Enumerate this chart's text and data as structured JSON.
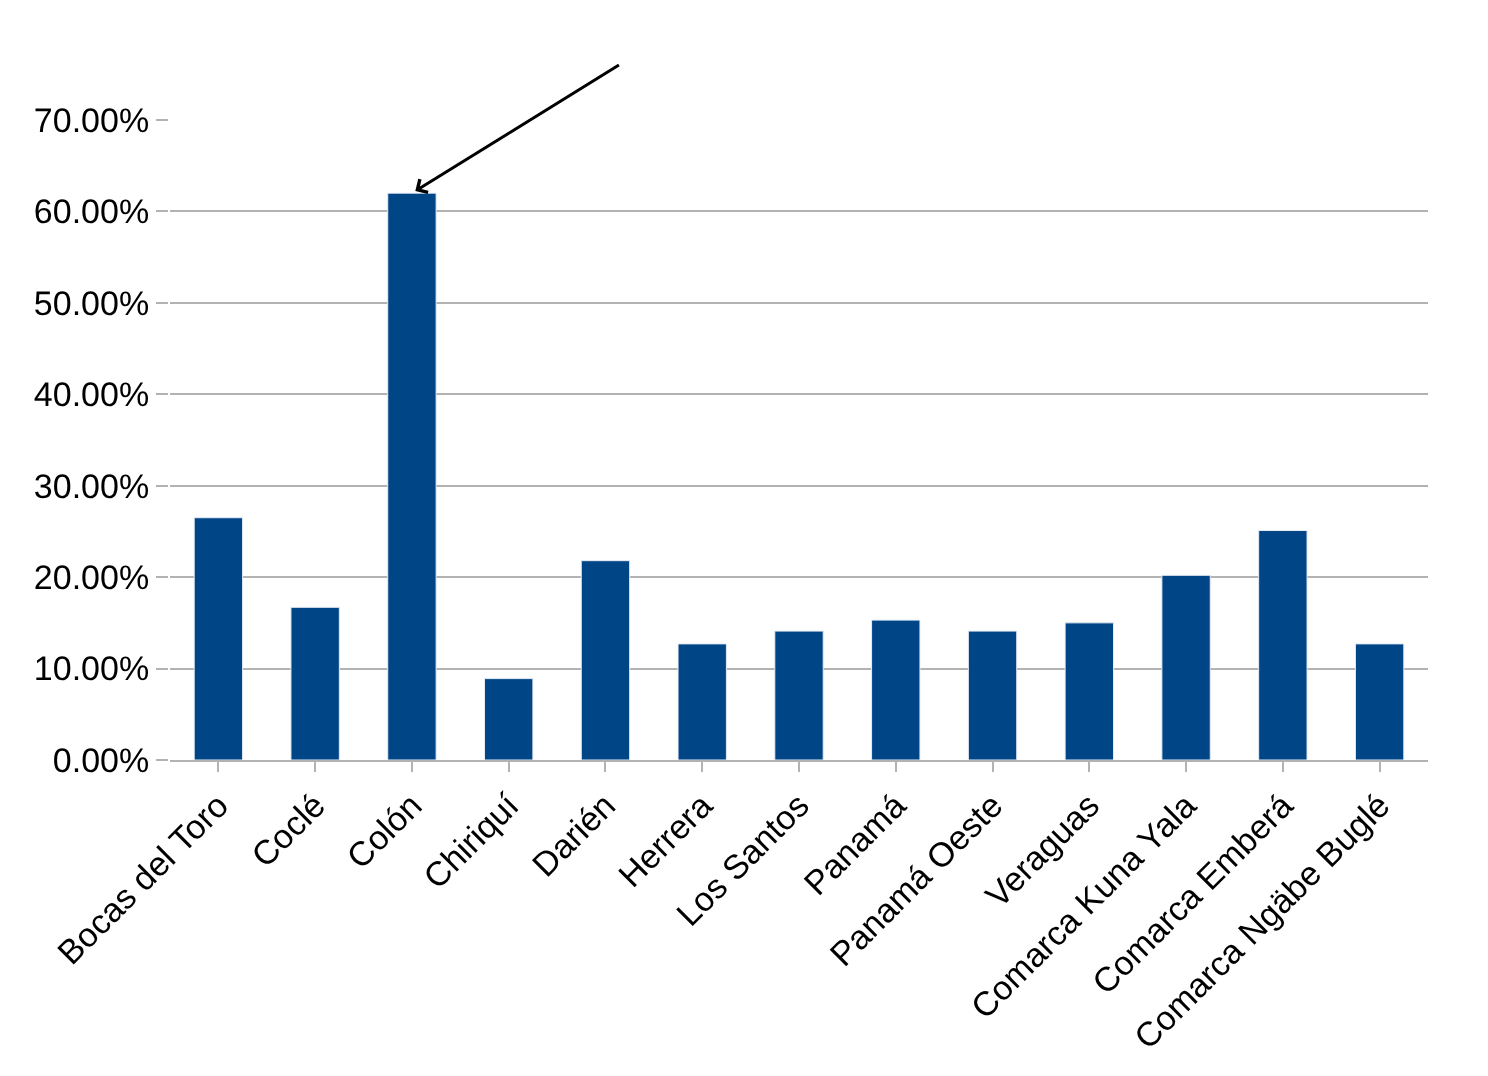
{
  "chart_data": {
    "type": "bar",
    "categories": [
      "Bocas del Toro",
      "Coclé",
      "Colón",
      "Chiriquí",
      "Darién",
      "Herrera",
      "Los Santos",
      "Panamá",
      "Panamá Oeste",
      "Veraguas",
      "Comarca Kuna Yala",
      "Comarca Emberá",
      "Comarca Ngäbe Buglé"
    ],
    "series": [
      {
        "color": "#004586",
        "values": [
          26.5,
          16.7,
          62.0,
          8.9,
          21.8,
          12.7,
          14.1,
          15.3,
          14.1,
          15.0,
          20.2,
          25.1,
          12.7
        ]
      }
    ],
    "ylim": [
      0,
      70
    ],
    "yticks": [
      {
        "value": 0,
        "label": "0.00%"
      },
      {
        "value": 10,
        "label": "10.00%"
      },
      {
        "value": 20,
        "label": "20.00%"
      },
      {
        "value": 30,
        "label": "30.00%"
      },
      {
        "value": 40,
        "label": "40.00%"
      },
      {
        "value": 50,
        "label": "50.00%"
      },
      {
        "value": 60,
        "label": "60.00%"
      },
      {
        "value": 70,
        "label": "70.00%"
      }
    ],
    "grid": "y",
    "legend": false
  }
}
